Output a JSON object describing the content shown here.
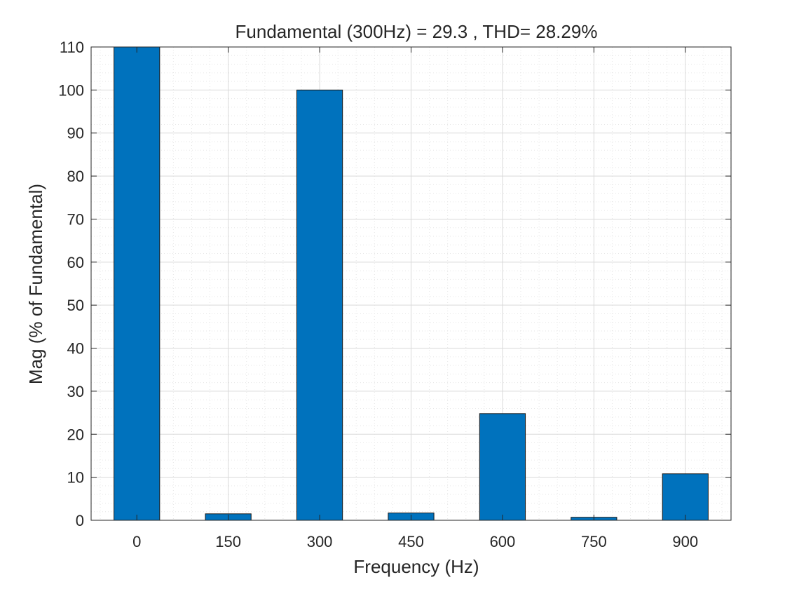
{
  "chart_data": {
    "type": "bar",
    "title": "Fundamental (300Hz) = 29.3 , THD= 28.29%",
    "xlabel": "Frequency (Hz)",
    "ylabel": "Mag (% of Fundamental)",
    "categories": [
      "0",
      "150",
      "300",
      "450",
      "600",
      "750",
      "900"
    ],
    "x": [
      0,
      150,
      300,
      450,
      600,
      750,
      900
    ],
    "values": [
      110,
      1.5,
      100,
      1.7,
      24.8,
      0.7,
      10.8
    ],
    "xlim": [
      -75,
      975
    ],
    "ylim": [
      0,
      110
    ],
    "yticks": [
      0,
      10,
      20,
      30,
      40,
      50,
      60,
      70,
      80,
      90,
      100,
      110
    ],
    "grid": true,
    "minor_grid": true,
    "bar_color": "#0072BD"
  }
}
